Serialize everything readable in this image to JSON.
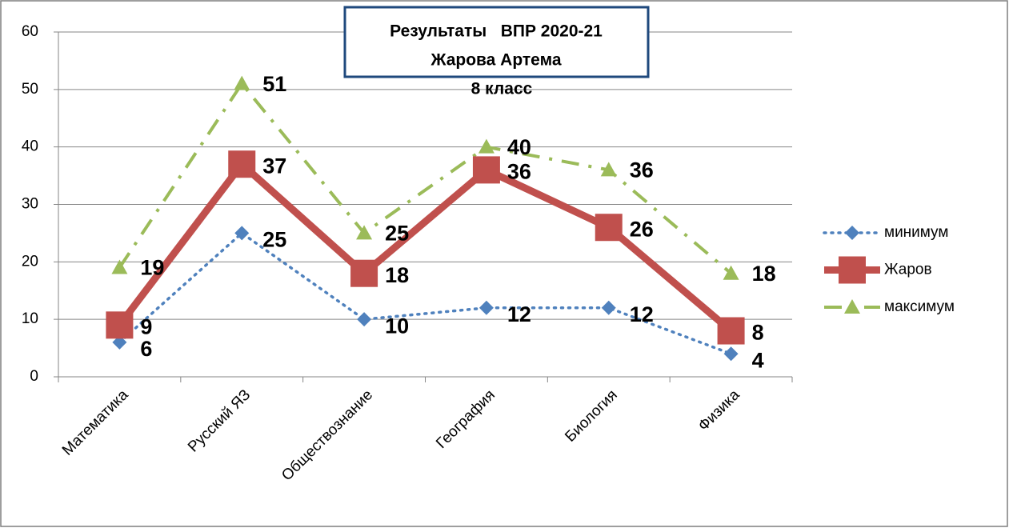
{
  "chart_data": {
    "type": "line",
    "title": [
      "Результаты   ВПР 2020-21",
      "Жарова Артема"
    ],
    "subtitle": "8 класс",
    "categories": [
      "Математика",
      "Русский ЯЗ",
      "Обществознание",
      "География",
      "Биология",
      "Физика"
    ],
    "series": [
      {
        "name": "минимум",
        "color": "#4f81bd",
        "values": [
          6,
          25,
          10,
          12,
          12,
          4
        ]
      },
      {
        "name": "Жаров",
        "color": "#c0504d",
        "values": [
          9,
          37,
          18,
          36,
          26,
          8
        ]
      },
      {
        "name": "максимум",
        "color": "#9bbb59",
        "values": [
          19,
          51,
          25,
          40,
          36,
          18
        ]
      }
    ],
    "ylim": [
      0,
      60
    ],
    "yticks": [
      0,
      10,
      20,
      30,
      40,
      50,
      60
    ],
    "grid": true,
    "legend": "right"
  }
}
